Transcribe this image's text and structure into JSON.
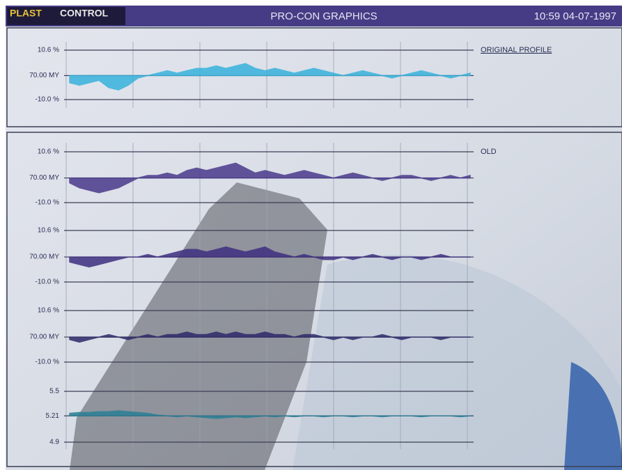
{
  "header": {
    "brand_left": "PLAST",
    "brand_right": "CONTROL",
    "title": "PRO-CON GRAPHICS",
    "clock": "10:59 04-07-1997"
  },
  "panels": [
    {
      "legend": "ORIGINAL PROFILE",
      "color": "#38b2dc",
      "yticks": [
        {
          "value": 10.6,
          "label": "10.6 %"
        },
        {
          "value": 0,
          "label": "70.00 MY"
        },
        {
          "value": -10,
          "label": "-10.0 %"
        }
      ],
      "values": [
        -3,
        -4,
        -3,
        -2,
        -5,
        -6,
        -4,
        -1,
        0,
        1,
        2,
        1,
        2,
        3,
        3,
        4,
        3,
        4,
        5,
        3,
        2,
        3,
        2,
        1,
        2,
        3,
        2,
        1,
        0,
        1,
        2,
        1,
        0,
        -1,
        0,
        1,
        2,
        1,
        0,
        -1,
        0,
        1
      ]
    },
    {
      "legend": "OLD",
      "color": "#4a3a8c",
      "yticks": [
        {
          "value": 10.6,
          "label": "10.6 %"
        },
        {
          "value": 0,
          "label": "70.00 MY"
        },
        {
          "value": -10,
          "label": "-10.0 %"
        }
      ],
      "values": [
        -2,
        -4,
        -5,
        -6,
        -5,
        -4,
        -2,
        0,
        1,
        1,
        2,
        1,
        3,
        4,
        3,
        4,
        5,
        6,
        4,
        2,
        3,
        2,
        1,
        2,
        3,
        2,
        1,
        0,
        1,
        2,
        1,
        0,
        -1,
        0,
        1,
        1,
        0,
        -1,
        0,
        1,
        0,
        1
      ]
    },
    {
      "color": "#3e2f80",
      "yticks": [
        {
          "value": 10.6,
          "label": "10.6 %"
        },
        {
          "value": 0,
          "label": "70.00 MY"
        },
        {
          "value": -10,
          "label": "-10.0 %"
        }
      ],
      "values": [
        -2,
        -3,
        -4,
        -3,
        -2,
        -1,
        0,
        0,
        1,
        0,
        1,
        2,
        3,
        3,
        2,
        3,
        4,
        3,
        2,
        3,
        4,
        2,
        1,
        0,
        1,
        0,
        -1,
        -1,
        0,
        -1,
        0,
        1,
        0,
        -1,
        0,
        0,
        -1,
        0,
        1,
        0,
        0,
        0
      ]
    },
    {
      "color": "#2e2a6a",
      "yticks": [
        {
          "value": 10.6,
          "label": "10.6 %"
        },
        {
          "value": 0,
          "label": "70.00 MY"
        },
        {
          "value": -10,
          "label": "-10.0 %"
        }
      ],
      "values": [
        -1,
        -2,
        -1,
        0,
        1,
        0,
        -1,
        0,
        1,
        0,
        1,
        1,
        2,
        1,
        1,
        2,
        1,
        2,
        1,
        1,
        2,
        1,
        1,
        0,
        1,
        1,
        0,
        -1,
        0,
        -1,
        0,
        0,
        1,
        0,
        -1,
        0,
        0,
        0,
        -1,
        0,
        0,
        0
      ]
    },
    {
      "color": "#2a7f95",
      "yticks": [
        5.5,
        5.21,
        4.9
      ],
      "values": [
        5.24,
        5.25,
        5.25,
        5.26,
        5.26,
        5.27,
        5.26,
        5.25,
        5.24,
        5.22,
        5.21,
        5.2,
        5.21,
        5.2,
        5.19,
        5.18,
        5.19,
        5.2,
        5.19,
        5.2,
        5.21,
        5.2,
        5.21,
        5.2,
        5.21,
        5.21,
        5.2,
        5.21,
        5.21,
        5.2,
        5.21,
        5.21,
        5.2,
        5.21,
        5.21,
        5.21,
        5.2,
        5.21,
        5.21,
        5.21,
        5.2,
        5.21
      ]
    }
  ]
}
